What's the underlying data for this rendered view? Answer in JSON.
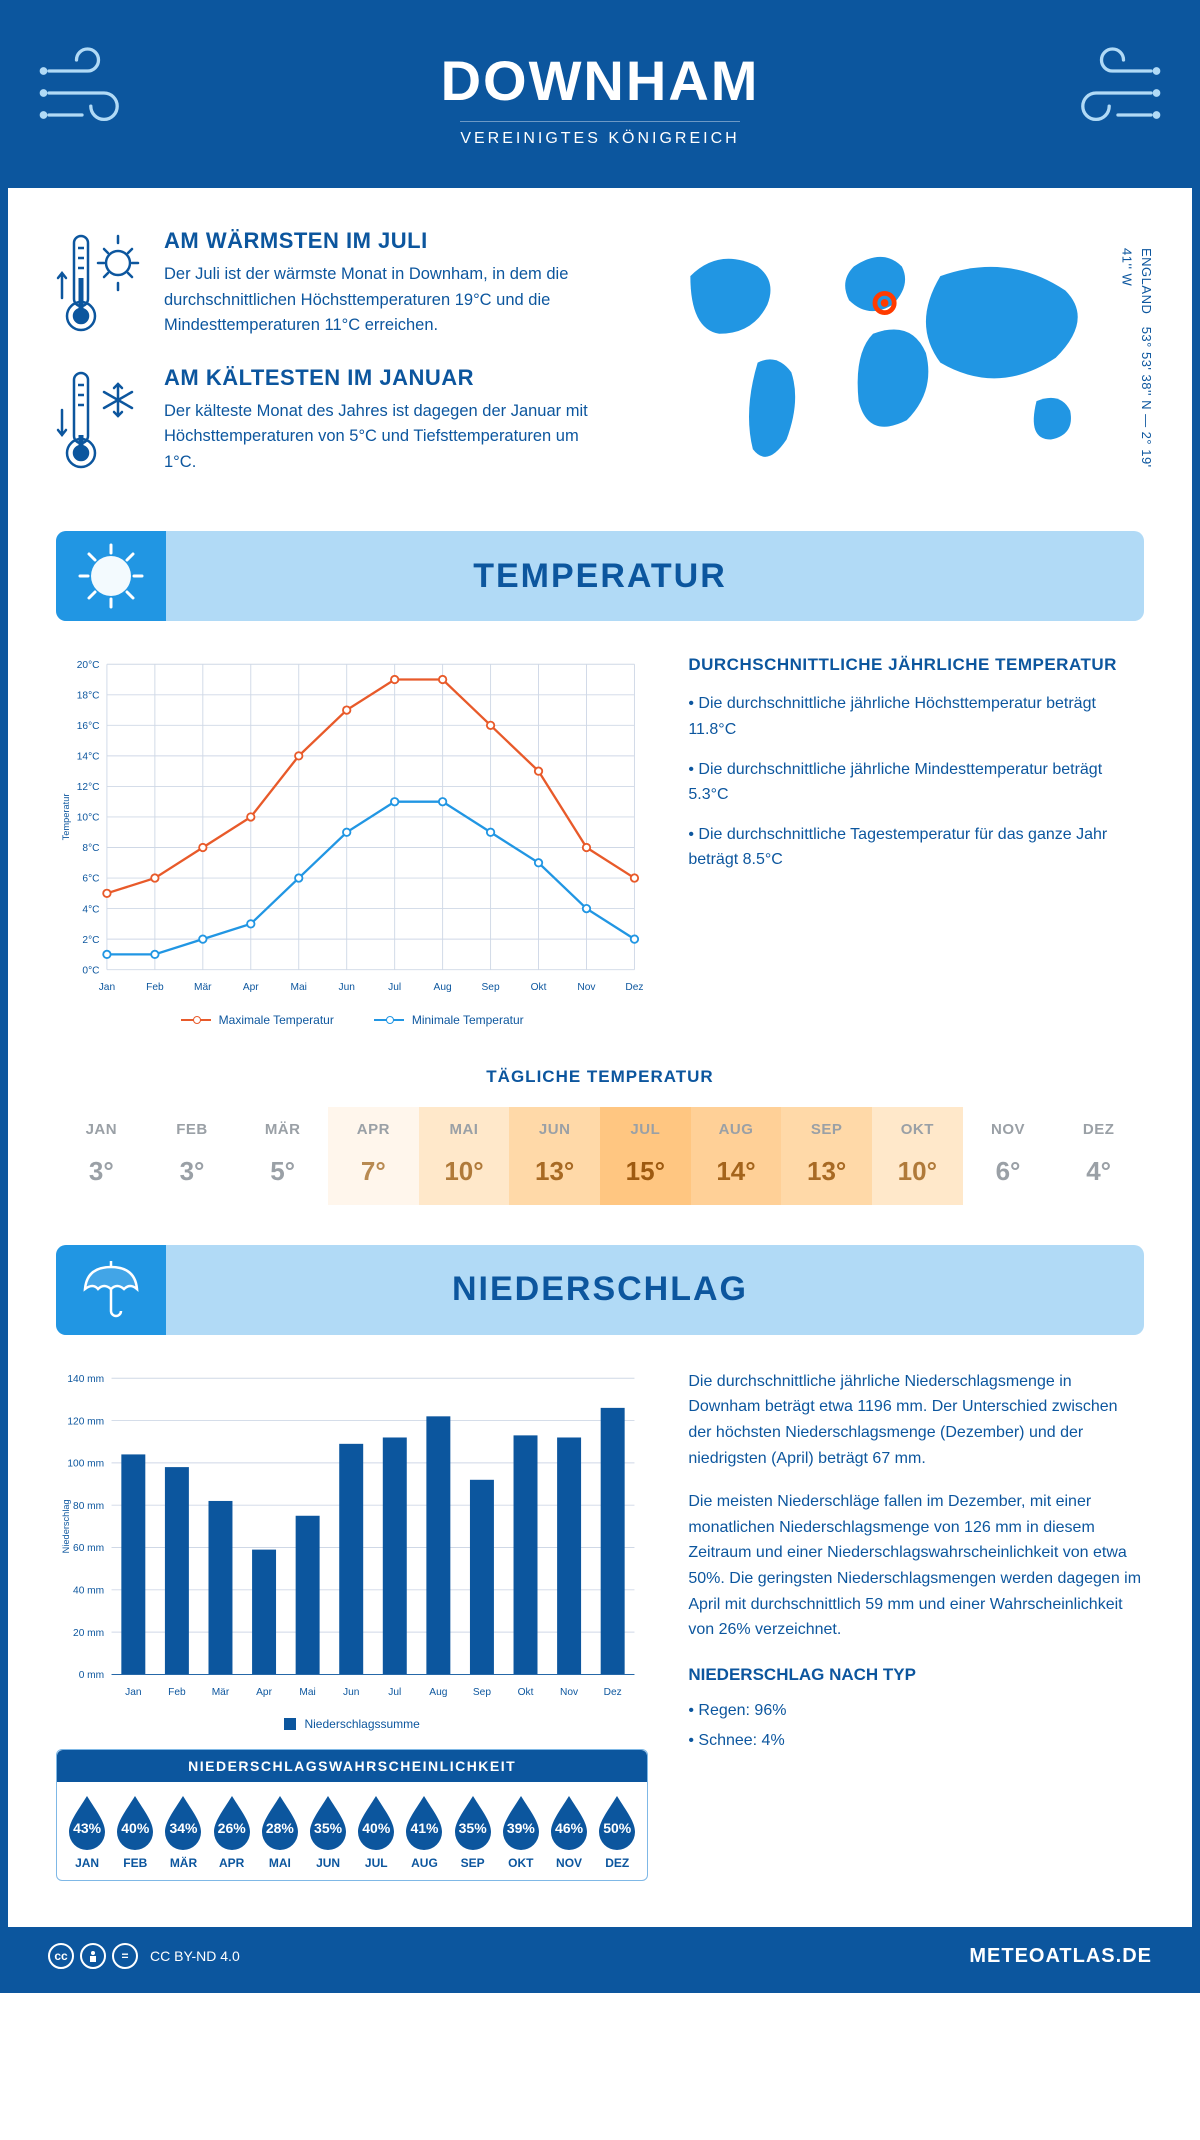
{
  "header": {
    "city": "DOWNHAM",
    "country": "VEREINIGTES KÖNIGREICH"
  },
  "location": {
    "coords": "53° 53' 38'' N — 2° 19' 41'' W",
    "region": "ENGLAND",
    "marker_color": "#ff3b00",
    "map_fill": "#2196e3"
  },
  "facts": {
    "warm": {
      "title": "AM WÄRMSTEN IM JULI",
      "text": "Der Juli ist der wärmste Monat in Downham, in dem die durchschnittlichen Höchsttemperaturen 19°C und die Mindesttemperaturen 11°C erreichen."
    },
    "cold": {
      "title": "AM KÄLTESTEN IM JANUAR",
      "text": "Der kälteste Monat des Jahres ist dagegen der Januar mit Höchsttemperaturen von 5°C und Tiefsttemperaturen um 1°C."
    }
  },
  "sections": {
    "temp": "TEMPERATUR",
    "precip": "NIEDERSCHLAG"
  },
  "temp_chart": {
    "type": "line",
    "months": [
      "Jan",
      "Feb",
      "Mär",
      "Apr",
      "Mai",
      "Jun",
      "Jul",
      "Aug",
      "Sep",
      "Okt",
      "Nov",
      "Dez"
    ],
    "max_values": [
      5,
      6,
      8,
      10,
      14,
      17,
      19,
      19,
      16,
      13,
      8,
      6
    ],
    "min_values": [
      1,
      1,
      2,
      3,
      6,
      9,
      11,
      11,
      9,
      7,
      4,
      2
    ],
    "max_color": "#e85a2a",
    "min_color": "#2196e3",
    "ylim": [
      0,
      20
    ],
    "ytick_step": 2,
    "grid_color": "#cfd8e6",
    "ylabel": "Temperatur",
    "legend_max": "Maximale Temperatur",
    "legend_min": "Minimale Temperatur"
  },
  "temp_text": {
    "title": "DURCHSCHNITTLICHE JÄHRLICHE TEMPERATUR",
    "b1": "• Die durchschnittliche jährliche Höchsttemperatur beträgt 11.8°C",
    "b2": "• Die durchschnittliche jährliche Mindesttemperatur beträgt 5.3°C",
    "b3": "• Die durchschnittliche Tagestemperatur für das ganze Jahr beträgt 8.5°C"
  },
  "daily": {
    "title": "TÄGLICHE TEMPERATUR",
    "months": [
      "JAN",
      "FEB",
      "MÄR",
      "APR",
      "MAI",
      "JUN",
      "JUL",
      "AUG",
      "SEP",
      "OKT",
      "NOV",
      "DEZ"
    ],
    "values": [
      "3°",
      "3°",
      "5°",
      "7°",
      "10°",
      "13°",
      "15°",
      "14°",
      "13°",
      "10°",
      "6°",
      "4°"
    ],
    "bg_colors": [
      "#ffffff",
      "#ffffff",
      "#ffffff",
      "#fff6ec",
      "#ffe8ca",
      "#ffd9a8",
      "#ffc681",
      "#ffd097",
      "#ffd9a8",
      "#ffe8ca",
      "#ffffff",
      "#ffffff"
    ],
    "text_colors": [
      "#9aa0a6",
      "#9aa0a6",
      "#9aa0a6",
      "#b88a52",
      "#b07a3a",
      "#a86a24",
      "#9e5a10",
      "#a4641c",
      "#a86a24",
      "#b07a3a",
      "#9aa0a6",
      "#9aa0a6"
    ]
  },
  "precip_chart": {
    "type": "bar",
    "months": [
      "Jan",
      "Feb",
      "Mär",
      "Apr",
      "Mai",
      "Jun",
      "Jul",
      "Aug",
      "Sep",
      "Okt",
      "Nov",
      "Dez"
    ],
    "values": [
      104,
      98,
      82,
      59,
      75,
      109,
      112,
      122,
      92,
      113,
      112,
      126
    ],
    "bar_color": "#0c569e",
    "ylim": [
      0,
      140
    ],
    "ytick_step": 20,
    "grid_color": "#cfd8e6",
    "ylabel": "Niederschlag",
    "legend": "Niederschlagssumme",
    "y_suffix": " mm"
  },
  "precip_text": {
    "p1": "Die durchschnittliche jährliche Niederschlagsmenge in Downham beträgt etwa 1196 mm. Der Unterschied zwischen der höchsten Niederschlagsmenge (Dezember) und der niedrigsten (April) beträgt 67 mm.",
    "p2": "Die meisten Niederschläge fallen im Dezember, mit einer monatlichen Niederschlagsmenge von 126 mm in diesem Zeitraum und einer Niederschlagswahrscheinlichkeit von etwa 50%. Die geringsten Niederschlagsmengen werden dagegen im April mit durchschnittlich 59 mm und einer Wahrscheinlichkeit von 26% verzeichnet.",
    "type_title": "NIEDERSCHLAG NACH TYP",
    "t1": "• Regen: 96%",
    "t2": "• Schnee: 4%"
  },
  "prob": {
    "title": "NIEDERSCHLAGSWAHRSCHEINLICHKEIT",
    "months": [
      "JAN",
      "FEB",
      "MÄR",
      "APR",
      "MAI",
      "JUN",
      "JUL",
      "AUG",
      "SEP",
      "OKT",
      "NOV",
      "DEZ"
    ],
    "values": [
      "43%",
      "40%",
      "34%",
      "26%",
      "28%",
      "35%",
      "40%",
      "41%",
      "35%",
      "39%",
      "46%",
      "50%"
    ],
    "drop_fill": "#0c569e"
  },
  "footer": {
    "license": "CC BY-ND 4.0",
    "site": "METEOATLAS.DE"
  },
  "palette": {
    "primary": "#0c569e",
    "light_blue": "#b1daf6",
    "mid_blue": "#2196e3"
  }
}
